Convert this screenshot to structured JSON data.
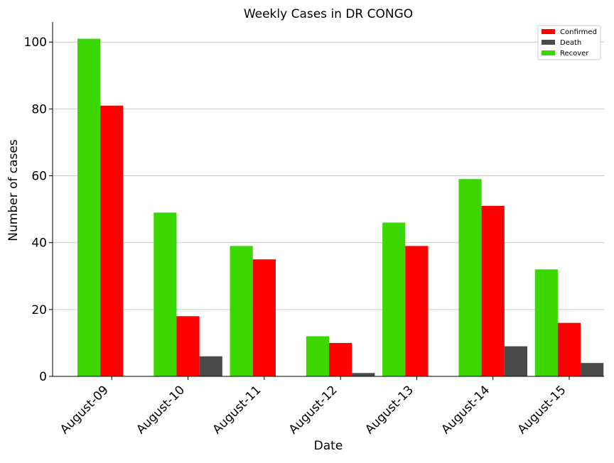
{
  "chart_data": {
    "type": "bar",
    "title": "Weekly Cases in DR CONGO",
    "xlabel": "Date",
    "ylabel": "Number of cases",
    "categories": [
      "August-09",
      "August-10",
      "August-11",
      "August-12",
      "August-13",
      "August-14",
      "August-15"
    ],
    "series": [
      {
        "name": "Recover",
        "color": "#3cd600",
        "values": [
          101,
          49,
          39,
          12,
          46,
          59,
          32
        ]
      },
      {
        "name": "Confirmed",
        "color": "#ff0000",
        "values": [
          81,
          18,
          35,
          10,
          39,
          51,
          16
        ]
      },
      {
        "name": "Death",
        "color": "#4a4a4a",
        "values": [
          0,
          6,
          0,
          1,
          0,
          9,
          4
        ]
      }
    ],
    "legend_order": [
      "Confirmed",
      "Death",
      "Recover"
    ],
    "legend_position": "top-right",
    "yticks": [
      0,
      20,
      40,
      60,
      80,
      100
    ],
    "ylim": [
      0,
      106
    ],
    "grid": "horizontal"
  }
}
